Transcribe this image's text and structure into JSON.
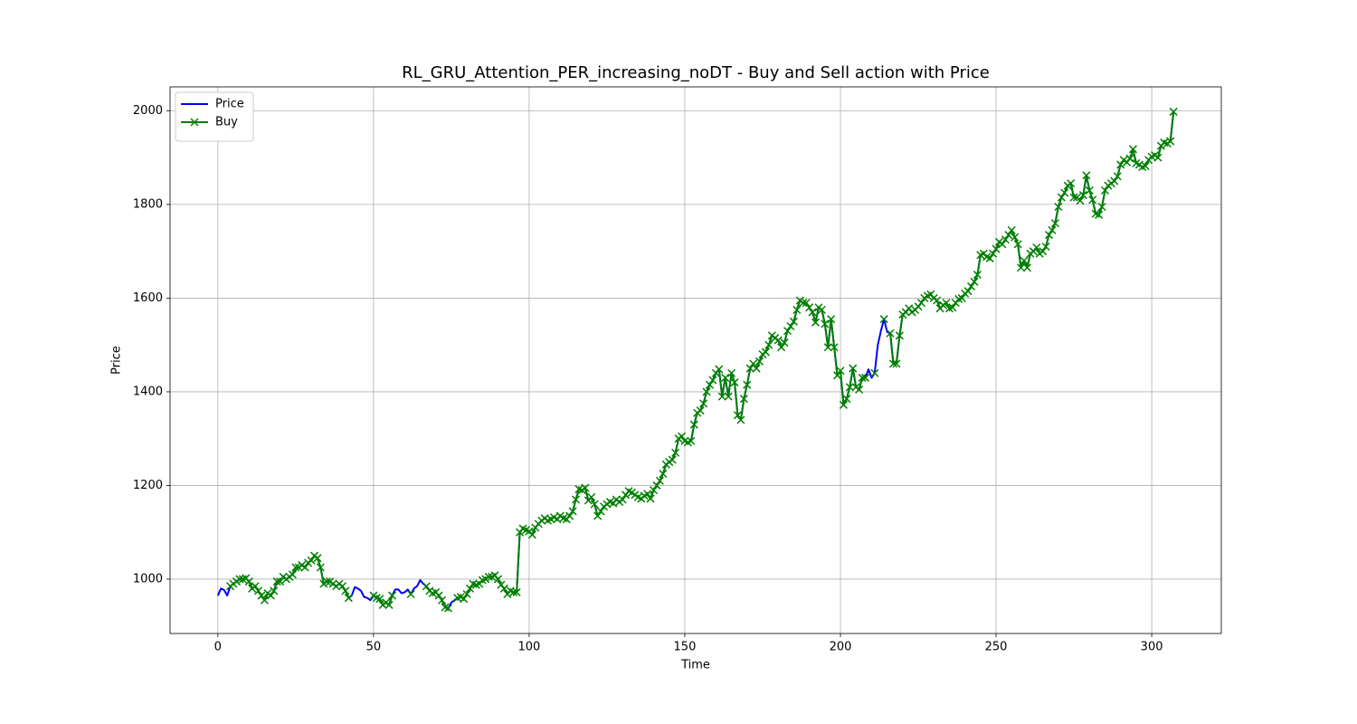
{
  "chart_data": {
    "type": "line",
    "title": "RL_GRU_Attention_PER_increasing_noDT - Buy and Sell action with Price",
    "xlabel": "Time",
    "ylabel": "Price",
    "x": [
      0,
      1,
      2,
      3,
      4,
      5,
      6,
      7,
      8,
      9,
      10,
      11,
      12,
      13,
      14,
      15,
      16,
      17,
      18,
      19,
      20,
      21,
      22,
      23,
      24,
      25,
      26,
      27,
      28,
      29,
      30,
      31,
      32,
      33,
      34,
      35,
      36,
      37,
      38,
      39,
      40,
      41,
      42,
      43,
      44,
      45,
      46,
      47,
      48,
      49,
      50,
      51,
      52,
      53,
      54,
      55,
      56,
      57,
      58,
      59,
      60,
      61,
      62,
      63,
      64,
      65,
      66,
      67,
      68,
      69,
      70,
      71,
      72,
      73,
      74,
      75,
      76,
      77,
      78,
      79,
      80,
      81,
      82,
      83,
      84,
      85,
      86,
      87,
      88,
      89,
      90,
      91,
      92,
      93,
      94,
      95,
      96,
      97,
      98,
      99,
      100,
      101,
      102,
      103,
      104,
      105,
      106,
      107,
      108,
      109,
      110,
      111,
      112,
      113,
      114,
      115,
      116,
      117,
      118,
      119,
      120,
      121,
      122,
      123,
      124,
      125,
      126,
      127,
      128,
      129,
      130,
      131,
      132,
      133,
      134,
      135,
      136,
      137,
      138,
      139,
      140,
      141,
      142,
      143,
      144,
      145,
      146,
      147,
      148,
      149,
      150,
      151,
      152,
      153,
      154,
      155,
      156,
      157,
      158,
      159,
      160,
      161,
      162,
      163,
      164,
      165,
      166,
      167,
      168,
      169,
      170,
      171,
      172,
      173,
      174,
      175,
      176,
      177,
      178,
      179,
      180,
      181,
      182,
      183,
      184,
      185,
      186,
      187,
      188,
      189,
      190,
      191,
      192,
      193,
      194,
      195,
      196,
      197,
      198,
      199,
      200,
      201,
      202,
      203,
      204,
      205,
      206,
      207,
      208,
      209,
      210,
      211,
      212,
      213,
      214,
      215,
      216,
      217,
      218,
      219,
      220,
      221,
      222,
      223,
      224,
      225,
      226,
      227,
      228,
      229,
      230,
      231,
      232,
      233,
      234,
      235,
      236,
      237,
      238,
      239,
      240,
      241,
      242,
      243,
      244,
      245,
      246,
      247,
      248,
      249,
      250,
      251,
      252,
      253,
      254,
      255,
      256,
      257,
      258,
      259,
      260,
      261,
      262,
      263,
      264,
      265,
      266,
      267,
      268,
      269,
      270,
      271,
      272,
      273,
      274,
      275,
      276,
      277,
      278,
      279,
      280,
      281,
      282,
      283,
      284,
      285,
      286,
      287,
      288,
      289,
      290,
      291,
      292,
      293,
      294,
      295,
      296,
      297,
      298,
      299,
      300,
      301,
      302,
      303,
      304,
      305,
      306,
      307
    ],
    "series": [
      {
        "name": "Price",
        "color": "#0000ff",
        "values": [
          965,
          980,
          977,
          965,
          985,
          990,
          995,
          1000,
          1000,
          1002,
          995,
          980,
          985,
          975,
          965,
          955,
          970,
          965,
          975,
          995,
          995,
          1005,
          1000,
          1005,
          1010,
          1025,
          1025,
          1030,
          1025,
          1035,
          1040,
          1050,
          1045,
          1025,
          990,
          995,
          995,
          990,
          985,
          990,
          985,
          975,
          960,
          965,
          983,
          980,
          975,
          962,
          960,
          955,
          965,
          960,
          958,
          945,
          950,
          945,
          965,
          978,
          978,
          970,
          972,
          978,
          968,
          980,
          985,
          998,
          990,
          985,
          975,
          970,
          972,
          965,
          955,
          940,
          938,
          950,
          955,
          960,
          962,
          958,
          968,
          980,
          990,
          988,
          990,
          998,
          1000,
          1005,
          1005,
          1008,
          1000,
          988,
          980,
          968,
          975,
          972,
          972,
          1100,
          1108,
          1105,
          1102,
          1095,
          1110,
          1118,
          1125,
          1130,
          1125,
          1128,
          1132,
          1128,
          1135,
          1130,
          1128,
          1135,
          1145,
          1170,
          1192,
          1190,
          1195,
          1168,
          1175,
          1160,
          1135,
          1145,
          1155,
          1160,
          1165,
          1162,
          1170,
          1165,
          1170,
          1180,
          1188,
          1185,
          1180,
          1175,
          1172,
          1178,
          1182,
          1172,
          1190,
          1200,
          1210,
          1225,
          1245,
          1250,
          1255,
          1270,
          1300,
          1305,
          1295,
          1292,
          1295,
          1330,
          1355,
          1360,
          1375,
          1400,
          1415,
          1425,
          1440,
          1448,
          1390,
          1430,
          1390,
          1440,
          1420,
          1350,
          1340,
          1385,
          1415,
          1450,
          1460,
          1450,
          1465,
          1480,
          1485,
          1500,
          1520,
          1515,
          1510,
          1495,
          1505,
          1530,
          1540,
          1550,
          1575,
          1595,
          1590,
          1590,
          1580,
          1570,
          1548,
          1580,
          1575,
          1545,
          1495,
          1555,
          1495,
          1435,
          1445,
          1372,
          1385,
          1410,
          1450,
          1410,
          1405,
          1430,
          1430,
          1448,
          1430,
          1440,
          1500,
          1530,
          1555,
          1528,
          1525,
          1460,
          1460,
          1520,
          1565,
          1570,
          1578,
          1570,
          1575,
          1582,
          1590,
          1600,
          1605,
          1608,
          1600,
          1595,
          1578,
          1585,
          1590,
          1578,
          1580,
          1590,
          1598,
          1600,
          1610,
          1615,
          1625,
          1635,
          1650,
          1692,
          1695,
          1688,
          1685,
          1695,
          1705,
          1720,
          1715,
          1725,
          1735,
          1745,
          1730,
          1715,
          1665,
          1680,
          1665,
          1695,
          1700,
          1708,
          1695,
          1700,
          1710,
          1735,
          1745,
          1760,
          1795,
          1815,
          1825,
          1840,
          1845,
          1815,
          1815,
          1808,
          1820,
          1862,
          1830,
          1810,
          1780,
          1778,
          1795,
          1830,
          1840,
          1845,
          1850,
          1860,
          1885,
          1895,
          1890,
          1898,
          1918,
          1888,
          1885,
          1880,
          1882,
          1895,
          1902,
          1905,
          1900,
          1925,
          1932,
          1930,
          1935,
          1998
        ]
      },
      {
        "name": "Buy",
        "color": "#008000",
        "marker": "x",
        "values": [
          null,
          null,
          null,
          null,
          985,
          990,
          995,
          1000,
          1000,
          1002,
          995,
          980,
          985,
          975,
          965,
          955,
          970,
          965,
          975,
          995,
          995,
          1005,
          1000,
          1005,
          1010,
          1025,
          1025,
          1030,
          1025,
          1035,
          1040,
          1050,
          1045,
          1025,
          990,
          995,
          995,
          990,
          985,
          990,
          985,
          975,
          960,
          null,
          null,
          null,
          null,
          null,
          null,
          null,
          965,
          960,
          958,
          945,
          950,
          945,
          965,
          null,
          null,
          null,
          null,
          null,
          968,
          null,
          null,
          null,
          null,
          985,
          975,
          970,
          972,
          965,
          955,
          940,
          938,
          null,
          null,
          960,
          962,
          958,
          968,
          980,
          990,
          988,
          990,
          998,
          1000,
          1005,
          1005,
          1008,
          1000,
          988,
          980,
          968,
          975,
          972,
          972,
          1100,
          1108,
          1105,
          1102,
          1095,
          1110,
          1118,
          1125,
          1130,
          1125,
          1128,
          1132,
          1128,
          1135,
          1130,
          1128,
          1135,
          1145,
          1170,
          1192,
          1190,
          1195,
          1168,
          1175,
          1160,
          1135,
          1145,
          1155,
          1160,
          1165,
          1162,
          1170,
          1165,
          1170,
          1180,
          1188,
          1185,
          1180,
          1175,
          1172,
          1178,
          1182,
          1172,
          1190,
          1200,
          1210,
          1225,
          1245,
          1250,
          1255,
          1270,
          1300,
          1305,
          1295,
          1292,
          1295,
          1330,
          1355,
          1360,
          1375,
          1400,
          1415,
          1425,
          1440,
          1448,
          1390,
          1430,
          1390,
          1440,
          1420,
          1350,
          1340,
          1385,
          1415,
          1450,
          1460,
          1450,
          1465,
          1480,
          1485,
          1500,
          1520,
          1515,
          1510,
          1495,
          1505,
          1530,
          1540,
          1550,
          1575,
          1595,
          1590,
          1590,
          1580,
          1570,
          1548,
          1580,
          1575,
          1545,
          1495,
          1555,
          1495,
          1435,
          1445,
          1372,
          1385,
          1410,
          1450,
          1410,
          1405,
          1430,
          1430,
          null,
          null,
          1440,
          null,
          null,
          1555,
          null,
          1525,
          1460,
          1460,
          1520,
          1565,
          1570,
          1578,
          1570,
          1575,
          1582,
          1590,
          1600,
          1605,
          1608,
          1600,
          1595,
          1578,
          1585,
          1590,
          1578,
          1580,
          1590,
          1598,
          1600,
          1610,
          1615,
          1625,
          1635,
          1650,
          1692,
          1695,
          1688,
          1685,
          1695,
          1705,
          1720,
          1715,
          1725,
          1735,
          1745,
          1730,
          1715,
          1665,
          1680,
          1665,
          1695,
          1700,
          1708,
          1695,
          1700,
          1710,
          1735,
          1745,
          1760,
          1795,
          1815,
          1825,
          1840,
          1845,
          1815,
          1815,
          1808,
          1820,
          1862,
          1830,
          1810,
          1780,
          1778,
          1795,
          1830,
          1840,
          1845,
          1850,
          1860,
          1885,
          1895,
          1890,
          1898,
          1918,
          1888,
          1885,
          1880,
          1882,
          1895,
          1902,
          1905,
          1900,
          1925,
          1932,
          1930,
          1935,
          1998
        ]
      }
    ],
    "xlim": [
      -15.35,
      322.35
    ],
    "ylim": [
      884,
      2051
    ],
    "xticks": [
      0,
      50,
      100,
      150,
      200,
      250,
      300
    ],
    "yticks": [
      1000,
      1200,
      1400,
      1600,
      1800,
      2000
    ],
    "grid": true,
    "legend": "upper left"
  }
}
